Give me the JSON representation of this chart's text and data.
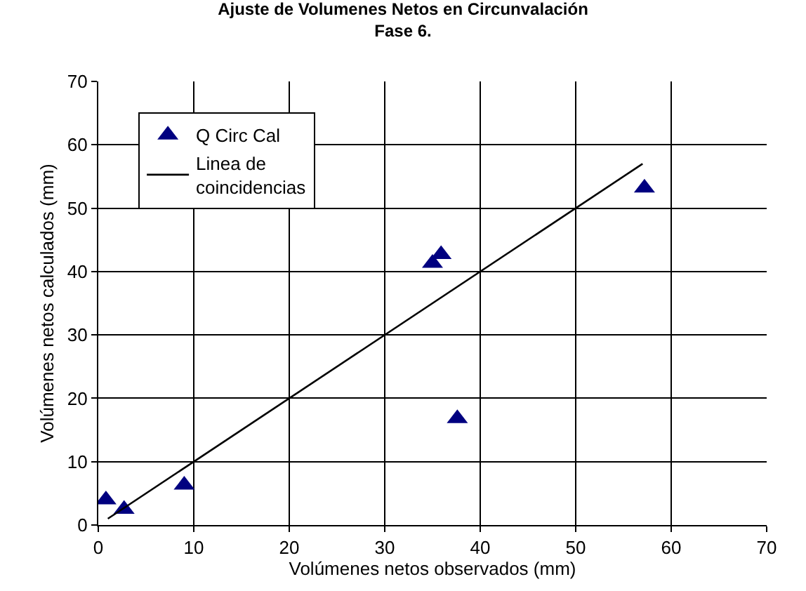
{
  "chart_data": {
    "type": "scatter",
    "title": "Ajuste de Volumenes Netos en Circunvalación\nFase 6.",
    "xlabel": "Volúmenes netos observados (mm)",
    "ylabel": "Volúmenes netos calculados (mm)",
    "x": [
      0.8,
      2.7,
      9.0,
      35.0,
      35.9,
      37.6,
      57.2
    ],
    "series": [
      {
        "name": "Q Circ Cal",
        "color": "#000080",
        "values": [
          4.0,
          2.5,
          6.3,
          41.3,
          42.7,
          16.8,
          53.2
        ],
        "marker": "triangle"
      },
      {
        "name": "Linea de\ncoincidencias",
        "type": "line",
        "color": "#000000",
        "x": [
          1,
          57
        ],
        "values": [
          1,
          57
        ],
        "marker": "none",
        "line_style": "solid"
      }
    ],
    "xlim": [
      0,
      70
    ],
    "ylim": [
      0,
      70
    ],
    "xticks": [
      0,
      10,
      20,
      30,
      40,
      50,
      60,
      70
    ],
    "yticks": [
      0,
      10,
      20,
      30,
      40,
      50,
      60,
      70
    ],
    "grid": true,
    "legend": "top left"
  }
}
